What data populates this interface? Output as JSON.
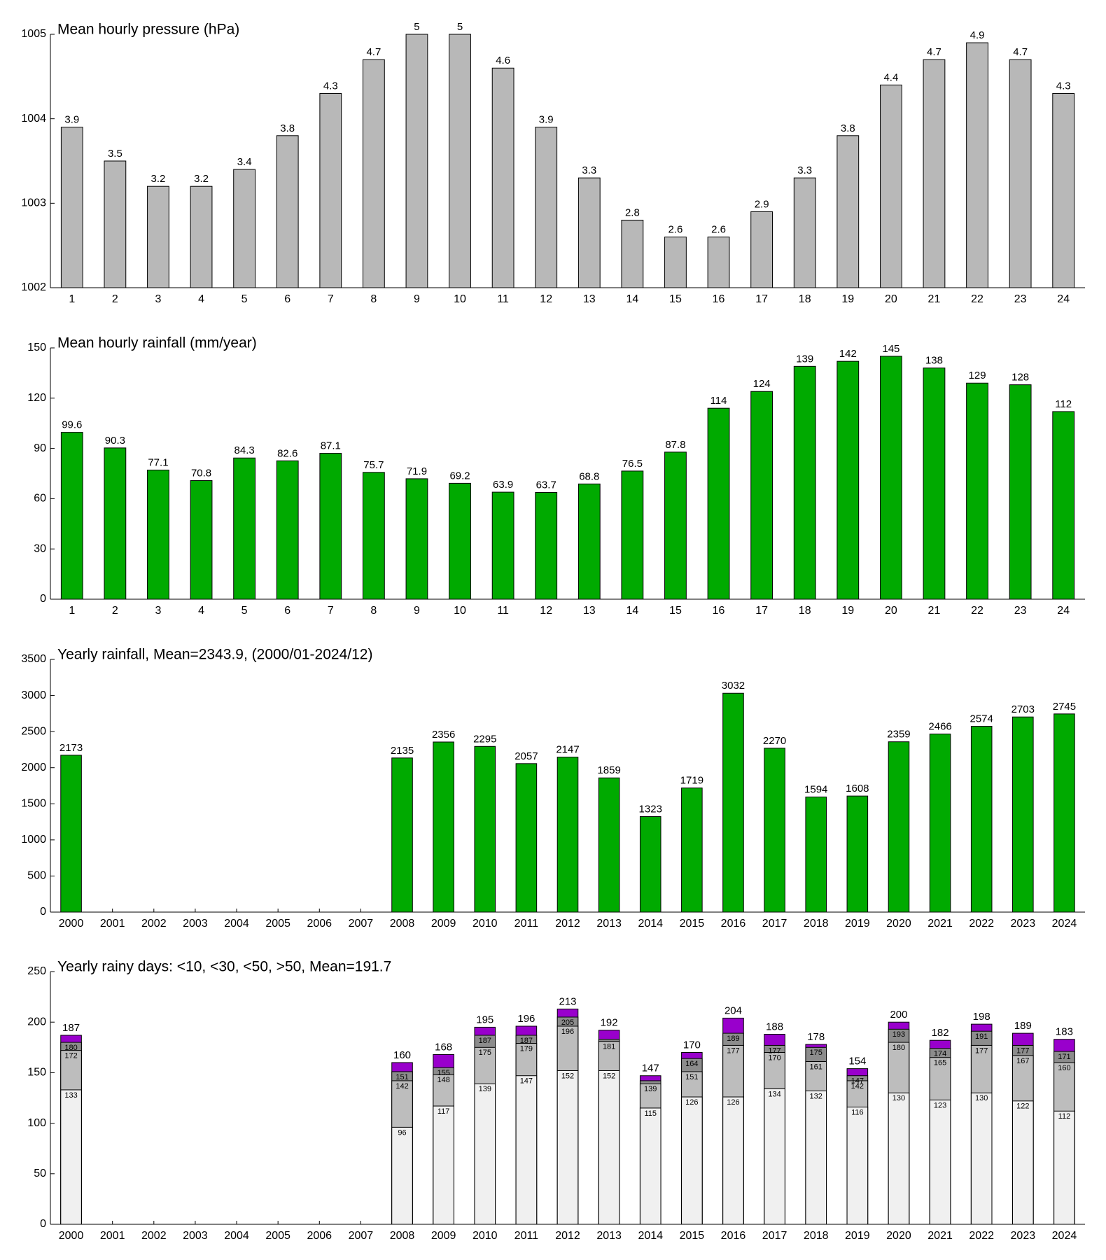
{
  "chart_data": [
    {
      "type": "bar",
      "title": "Mean hourly pressure (hPa)",
      "categories": [
        "1",
        "2",
        "3",
        "4",
        "5",
        "6",
        "7",
        "8",
        "9",
        "10",
        "11",
        "12",
        "13",
        "14",
        "15",
        "16",
        "17",
        "18",
        "19",
        "20",
        "21",
        "22",
        "23",
        "24"
      ],
      "values": [
        1003.9,
        1003.5,
        1003.2,
        1003.2,
        1003.4,
        1003.8,
        1004.3,
        1004.7,
        1005,
        1005,
        1004.6,
        1003.9,
        1003.3,
        1002.8,
        1002.6,
        1002.6,
        1002.9,
        1003.3,
        1003.8,
        1004.4,
        1004.7,
        1004.9,
        1004.7,
        1004.3
      ],
      "value_labels": [
        "3.9",
        "3.5",
        "3.2",
        "3.2",
        "3.4",
        "3.8",
        "4.3",
        "4.7",
        "5",
        "5",
        "4.6",
        "3.9",
        "3.3",
        "2.8",
        "2.6",
        "2.6",
        "2.9",
        "3.3",
        "3.8",
        "4.4",
        "4.7",
        "4.9",
        "4.7",
        "4.3"
      ],
      "color": "#b8b8b8",
      "ylim": [
        1002,
        1005
      ],
      "yticks": [
        1002,
        1003,
        1004,
        1005
      ]
    },
    {
      "type": "bar",
      "title": "Mean hourly rainfall (mm/year)",
      "categories": [
        "1",
        "2",
        "3",
        "4",
        "5",
        "6",
        "7",
        "8",
        "9",
        "10",
        "11",
        "12",
        "13",
        "14",
        "15",
        "16",
        "17",
        "18",
        "19",
        "20",
        "21",
        "22",
        "23",
        "24"
      ],
      "values": [
        99.6,
        90.3,
        77.1,
        70.8,
        84.3,
        82.6,
        87.1,
        75.7,
        71.9,
        69.2,
        63.9,
        63.7,
        68.8,
        76.5,
        87.8,
        114,
        124,
        139,
        142,
        145,
        138,
        129,
        128,
        112
      ],
      "color": "#00aa00",
      "ylim": [
        0,
        150
      ],
      "yticks": [
        0,
        30,
        60,
        90,
        120,
        150
      ]
    },
    {
      "type": "bar",
      "title": "Yearly rainfall, Mean=2343.9, (2000/01-2024/12)",
      "categories": [
        "2000",
        "2001",
        "2002",
        "2003",
        "2004",
        "2005",
        "2006",
        "2007",
        "2008",
        "2009",
        "2010",
        "2011",
        "2012",
        "2013",
        "2014",
        "2015",
        "2016",
        "2017",
        "2018",
        "2019",
        "2020",
        "2021",
        "2022",
        "2023",
        "2024"
      ],
      "values": [
        2173,
        null,
        null,
        null,
        null,
        null,
        null,
        null,
        2135,
        2356,
        2295,
        2057,
        2147,
        1859,
        1323,
        1719,
        3032,
        2270,
        1594,
        1608,
        2359,
        2466,
        2574,
        2703,
        2745
      ],
      "color": "#00aa00",
      "ylim": [
        0,
        3500
      ],
      "yticks": [
        0,
        500,
        1000,
        1500,
        2000,
        2500,
        3000,
        3500
      ]
    },
    {
      "type": "bar",
      "title": "Yearly rainy days: <10, <30, <50, >50, Mean=191.7",
      "categories": [
        "2000",
        "2001",
        "2002",
        "2003",
        "2004",
        "2005",
        "2006",
        "2007",
        "2008",
        "2009",
        "2010",
        "2011",
        "2012",
        "2013",
        "2014",
        "2015",
        "2016",
        "2017",
        "2018",
        "2019",
        "2020",
        "2021",
        "2022",
        "2023",
        "2024"
      ],
      "series": [
        {
          "color": "#f0f0f0",
          "values": [
            133,
            null,
            null,
            null,
            null,
            null,
            null,
            null,
            96,
            117,
            139,
            147,
            152,
            152,
            115,
            126,
            126,
            134,
            132,
            116,
            130,
            123,
            130,
            122,
            112
          ]
        },
        {
          "color": "#bdbdbd",
          "values": [
            172,
            null,
            null,
            null,
            null,
            null,
            null,
            null,
            142,
            148,
            175,
            179,
            196,
            181,
            139,
            151,
            177,
            170,
            161,
            142,
            180,
            165,
            177,
            167,
            160
          ]
        },
        {
          "color": "#8c8c8c",
          "values": [
            180,
            null,
            null,
            null,
            null,
            null,
            null,
            null,
            151,
            155,
            187,
            187,
            205,
            183,
            142,
            164,
            189,
            177,
            175,
            147,
            193,
            174,
            191,
            177,
            171
          ],
          "value_labels": [
            "180",
            null,
            null,
            null,
            null,
            null,
            null,
            null,
            "151",
            "155",
            "187",
            "187",
            "205",
            null,
            null,
            "164",
            "189",
            "177",
            "175",
            "147",
            "193",
            "174",
            "191",
            "177",
            "171"
          ]
        },
        {
          "color": "#9900cc",
          "values": [
            187,
            null,
            null,
            null,
            null,
            null,
            null,
            null,
            160,
            168,
            195,
            196,
            213,
            192,
            147,
            170,
            204,
            188,
            178,
            154,
            200,
            182,
            198,
            189,
            183
          ]
        }
      ],
      "ylim": [
        0,
        250
      ],
      "yticks": [
        0,
        50,
        100,
        150,
        200,
        250
      ]
    }
  ]
}
